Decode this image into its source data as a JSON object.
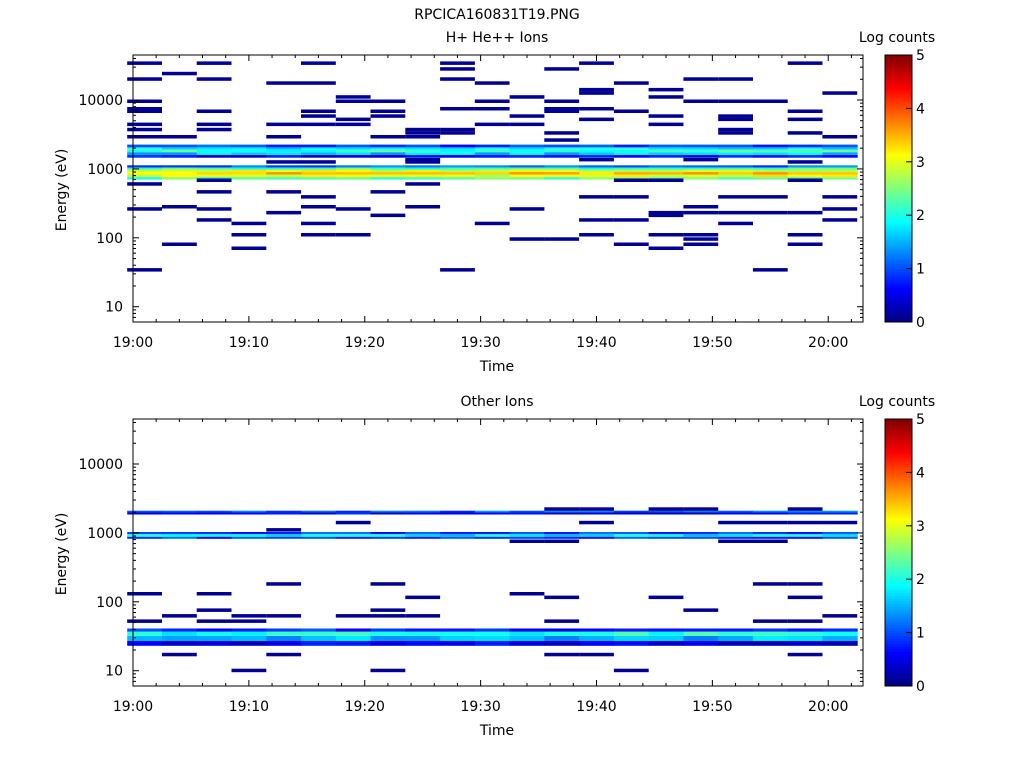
{
  "page_title": "RPCICA160831T19.PNG",
  "palette": [
    "#00007f",
    "#0000ff",
    "#007fff",
    "#00ffff",
    "#7fff7f",
    "#ffff00",
    "#ff7f00",
    "#ff0000",
    "#7f0000"
  ],
  "chart_data": [
    {
      "type": "heatmap",
      "title": "H+ He++ Ions",
      "xlabel": "Time",
      "ylabel": "Energy (eV)",
      "x_range": [
        "19:00",
        "20:03"
      ],
      "x_ticks": [
        "19:00",
        "19:10",
        "19:20",
        "19:30",
        "19:40",
        "19:50",
        "20:00"
      ],
      "y_scale": "log",
      "y_range": [
        6,
        45000
      ],
      "y_ticks": [
        "10",
        "100",
        "1000",
        "10000"
      ],
      "colorbar": {
        "label": "Log counts",
        "range": [
          0,
          5
        ],
        "ticks": [
          "0",
          "1",
          "2",
          "3",
          "4",
          "5"
        ]
      },
      "columns": [
        "19:01",
        "19:04",
        "19:07",
        "19:10",
        "19:13",
        "19:16",
        "19:19",
        "19:22",
        "19:25",
        "19:28",
        "19:31",
        "19:34",
        "19:37",
        "19:40",
        "19:43",
        "19:46",
        "19:49",
        "19:52",
        "19:55",
        "19:58",
        "20:01"
      ],
      "bands": [
        {
          "e_low": 700,
          "e_high": 760,
          "log_counts": 2.3
        },
        {
          "e_low": 760,
          "e_high": 830,
          "log_counts": 3.0
        },
        {
          "e_low": 830,
          "e_high": 900,
          "log_counts": 3.4
        },
        {
          "e_low": 900,
          "e_high": 980,
          "log_counts": 3.0
        },
        {
          "e_low": 980,
          "e_high": 1050,
          "log_counts": 2.2
        },
        {
          "e_low": 1050,
          "e_high": 1130,
          "log_counts": 1.1
        },
        {
          "e_low": 1450,
          "e_high": 1600,
          "log_counts": 0.6
        },
        {
          "e_low": 1600,
          "e_high": 1750,
          "log_counts": 1.6
        },
        {
          "e_low": 1750,
          "e_high": 1900,
          "log_counts": 2.1
        },
        {
          "e_low": 1900,
          "e_high": 2050,
          "log_counts": 1.8
        },
        {
          "e_low": 2050,
          "e_high": 2250,
          "log_counts": 0.9
        }
      ],
      "sparse_energies": [
        34,
        70,
        80,
        95,
        110,
        160,
        180,
        210,
        230,
        260,
        280,
        390,
        460,
        600,
        680,
        1250,
        1350,
        2600,
        2900,
        3300,
        3700,
        4400,
        5200,
        5800,
        6800,
        7400,
        9500,
        11000,
        12500,
        14000,
        17500,
        20000,
        24000,
        28000,
        34000
      ],
      "sparse_log_counts": 0.1
    },
    {
      "type": "heatmap",
      "title": "Other Ions",
      "xlabel": "Time",
      "ylabel": "Energy (eV)",
      "x_range": [
        "19:00",
        "20:03"
      ],
      "x_ticks": [
        "19:00",
        "19:10",
        "19:20",
        "19:30",
        "19:40",
        "19:50",
        "20:00"
      ],
      "y_scale": "log",
      "y_range": [
        6,
        45000
      ],
      "y_ticks": [
        "10",
        "100",
        "1000",
        "10000"
      ],
      "colorbar": {
        "label": "Log counts",
        "range": [
          0,
          5
        ],
        "ticks": [
          "0",
          "1",
          "2",
          "3",
          "4",
          "5"
        ]
      },
      "columns": [
        "19:01",
        "19:04",
        "19:07",
        "19:10",
        "19:13",
        "19:16",
        "19:19",
        "19:22",
        "19:25",
        "19:28",
        "19:31",
        "19:34",
        "19:37",
        "19:40",
        "19:43",
        "19:46",
        "19:49",
        "19:52",
        "19:55",
        "19:58",
        "20:01"
      ],
      "bands": [
        {
          "e_low": 23,
          "e_high": 27,
          "log_counts": 0.5
        },
        {
          "e_low": 27,
          "e_high": 32,
          "log_counts": 1.5
        },
        {
          "e_low": 32,
          "e_high": 37,
          "log_counts": 2.0
        },
        {
          "e_low": 37,
          "e_high": 41,
          "log_counts": 0.8
        },
        {
          "e_low": 820,
          "e_high": 880,
          "log_counts": 0.9
        },
        {
          "e_low": 880,
          "e_high": 960,
          "log_counts": 1.8
        },
        {
          "e_low": 960,
          "e_high": 1030,
          "log_counts": 0.9
        },
        {
          "e_low": 1850,
          "e_high": 1980,
          "log_counts": 0.6
        },
        {
          "e_low": 1980,
          "e_high": 2100,
          "log_counts": 1.1
        }
      ],
      "sparse_energies": [
        10,
        17,
        52,
        62,
        75,
        115,
        130,
        180,
        750,
        1100,
        1400,
        2200
      ],
      "sparse_log_counts": 0.1
    }
  ]
}
